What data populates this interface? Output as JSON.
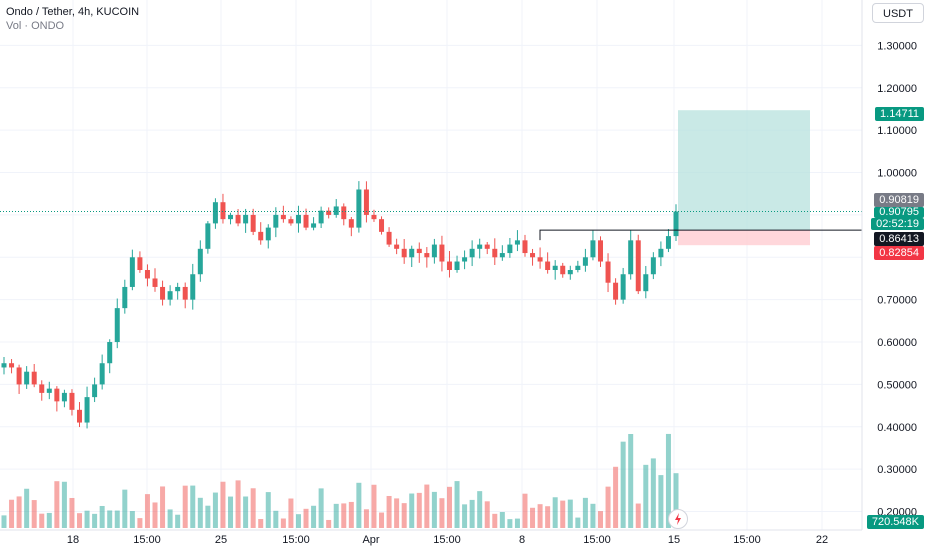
{
  "header": {
    "title": "Ondo / Tether, 4h, KUCOIN",
    "volume_label": "Vol · ONDO"
  },
  "currency_button": "USDT",
  "price_axis": {
    "labels": [
      "1.30000",
      "1.20000",
      "1.10000",
      "1.00000",
      "0.70000",
      "0.60000",
      "0.50000",
      "0.40000",
      "0.30000",
      "0.20000"
    ]
  },
  "time_axis": {
    "labels": [
      "18",
      "15:00",
      "25",
      "15:00",
      "Apr",
      "15:00",
      "8",
      "15:00",
      "15",
      "15:00",
      "22"
    ]
  },
  "price_labels": {
    "target": "1.14711",
    "last": "0.90819",
    "current": "0.90795",
    "countdown": "02:52:19",
    "entry": "0.86413",
    "stop": "0.82854",
    "volume": "720.548K"
  },
  "colors": {
    "up": "#26a69a",
    "down": "#ef5350",
    "target_zone": "#b2dfdb",
    "stop_zone": "#ffcdd2",
    "grid": "#f0f3fa",
    "axis_text": "#131722"
  },
  "chart_data": {
    "type": "candlestick",
    "timeframe": "4h",
    "symbol": "ONDO/USDT",
    "exchange": "KUCOIN",
    "ylim": [
      0.18,
      1.36
    ],
    "x_ticks": [
      "18",
      "15:00",
      "25",
      "15:00",
      "Apr",
      "15:00",
      "8",
      "15:00",
      "15",
      "15:00",
      "22"
    ],
    "y_ticks": [
      0.2,
      0.3,
      0.4,
      0.5,
      0.6,
      0.7,
      0.8,
      0.9,
      1.0,
      1.1,
      1.2,
      1.3
    ],
    "close_path": [
      0.55,
      0.54,
      0.5,
      0.53,
      0.5,
      0.48,
      0.49,
      0.46,
      0.48,
      0.44,
      0.41,
      0.47,
      0.5,
      0.55,
      0.6,
      0.68,
      0.73,
      0.8,
      0.77,
      0.75,
      0.73,
      0.7,
      0.72,
      0.73,
      0.7,
      0.76,
      0.82,
      0.88,
      0.93,
      0.89,
      0.9,
      0.88,
      0.9,
      0.86,
      0.84,
      0.87,
      0.9,
      0.89,
      0.88,
      0.9,
      0.87,
      0.88,
      0.91,
      0.9,
      0.92,
      0.89,
      0.87,
      0.96,
      0.9,
      0.89,
      0.86,
      0.83,
      0.82,
      0.8,
      0.82,
      0.81,
      0.8,
      0.83,
      0.79,
      0.77,
      0.79,
      0.8,
      0.82,
      0.83,
      0.82,
      0.8,
      0.81,
      0.83,
      0.84,
      0.81,
      0.8,
      0.79,
      0.77,
      0.78,
      0.76,
      0.77,
      0.78,
      0.8,
      0.84,
      0.79,
      0.74,
      0.7,
      0.76,
      0.84,
      0.72,
      0.76,
      0.8,
      0.82,
      0.85,
      0.908
    ],
    "volume": {
      "ylim": [
        0,
        720000
      ],
      "peak_label": "720.548K"
    },
    "position": {
      "type": "long",
      "target": 1.14711,
      "entry": 0.86413,
      "stop": 0.82854
    },
    "last_price": 0.90795,
    "prev_close": 0.90819
  }
}
